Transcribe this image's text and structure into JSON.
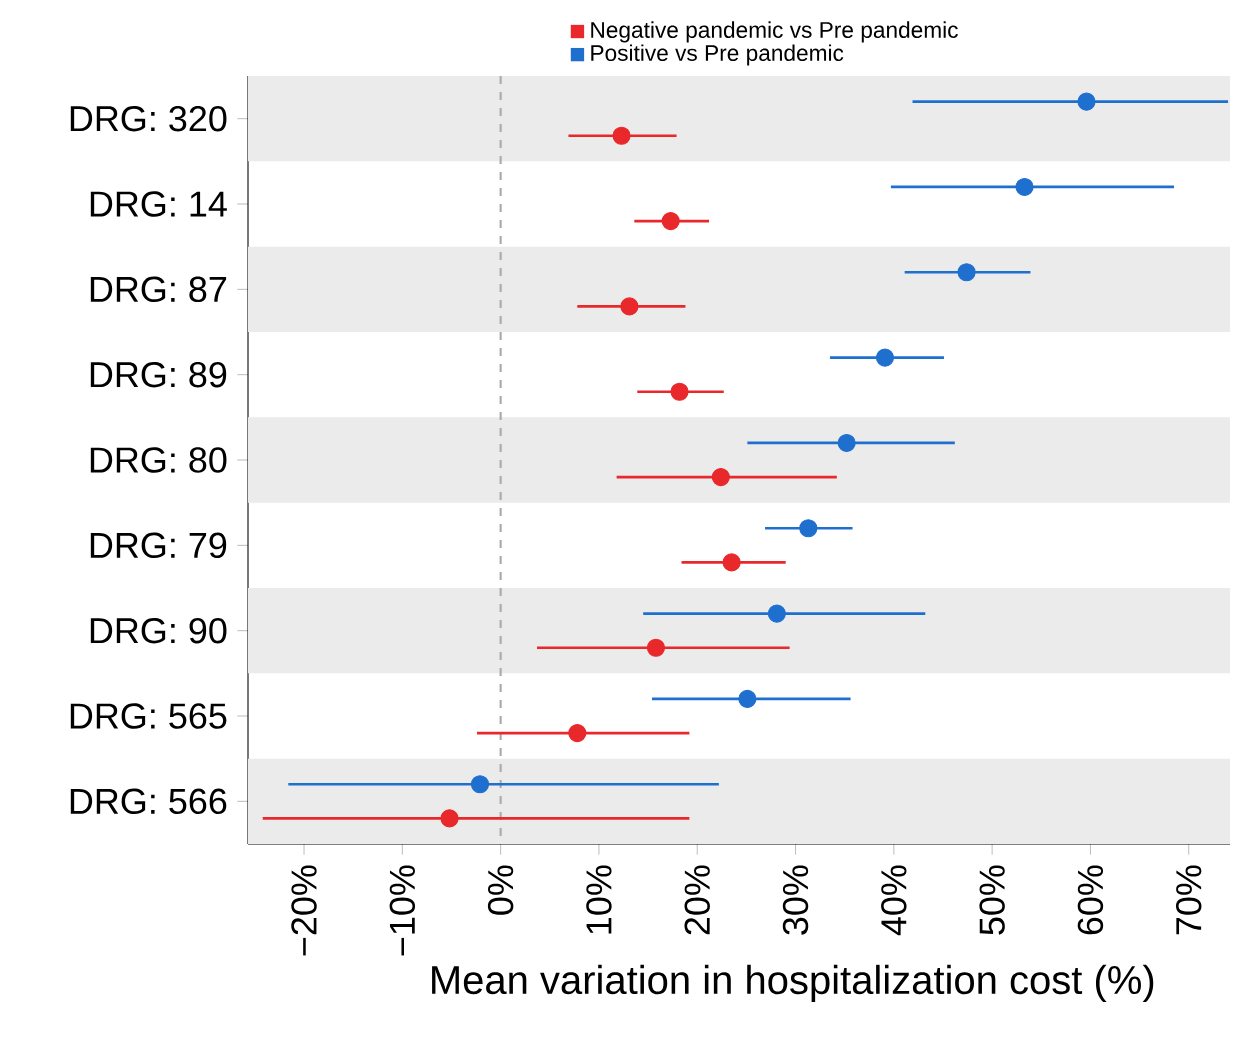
{
  "chart_data": {
    "type": "scatter",
    "orientation": "horizontal",
    "categories": [
      "DRG: 320",
      "DRG: 14",
      "DRG: 87",
      "DRG: 89",
      "DRG: 80",
      "DRG: 79",
      "DRG: 90",
      "DRG: 565",
      "DRG: 566"
    ],
    "series": [
      {
        "name": "Negative pandemic vs Pre pandemic",
        "color": "#e8282b",
        "values": [
          12.3,
          17.3,
          13.1,
          18.2,
          22.4,
          23.5,
          15.8,
          7.8,
          -5.2
        ],
        "errors": [
          [
            6.9,
            17.9
          ],
          [
            13.6,
            21.2
          ],
          [
            7.8,
            18.8
          ],
          [
            13.9,
            22.7
          ],
          [
            11.8,
            34.2
          ],
          [
            18.4,
            29.0
          ],
          [
            3.7,
            29.4
          ],
          [
            -2.4,
            19.2
          ],
          [
            -24.2,
            19.2
          ]
        ]
      },
      {
        "name": "Positive vs Pre pandemic",
        "color": "#1f6fcf",
        "values": [
          59.6,
          53.3,
          47.4,
          39.1,
          35.2,
          31.3,
          28.1,
          25.1,
          -2.1
        ],
        "errors": [
          [
            41.9,
            74.0
          ],
          [
            39.7,
            68.5
          ],
          [
            41.1,
            53.9
          ],
          [
            33.5,
            45.1
          ],
          [
            25.1,
            46.2
          ],
          [
            26.9,
            35.8
          ],
          [
            14.5,
            43.2
          ],
          [
            15.4,
            35.6
          ],
          [
            -21.6,
            22.2
          ]
        ]
      }
    ],
    "xlabel": "Mean variation in hospitalization cost (%)",
    "xlim": [
      -25.7,
      74.2
    ],
    "xticks": [
      {
        "value": -20,
        "label": "−20%"
      },
      {
        "value": -10,
        "label": "−10%"
      },
      {
        "value": 0,
        "label": "0%"
      },
      {
        "value": 10,
        "label": "10%"
      },
      {
        "value": 20,
        "label": "20%"
      },
      {
        "value": 30,
        "label": "30%"
      },
      {
        "value": 40,
        "label": "40%"
      },
      {
        "value": 50,
        "label": "50%"
      },
      {
        "value": 60,
        "label": "60%"
      },
      {
        "value": 70,
        "label": "70%"
      }
    ],
    "ref_lines": [
      {
        "axis": "x",
        "value": 0,
        "color": "#aaaaaa",
        "line_style": "dashed"
      }
    ],
    "bands": [
      {
        "axis": "y",
        "from": "DRG: 320",
        "to": "DRG: 320",
        "color": "#ebebeb"
      },
      {
        "axis": "y",
        "from": "DRG: 87",
        "to": "DRG: 87",
        "color": "#ebebeb"
      },
      {
        "axis": "y",
        "from": "DRG: 80",
        "to": "DRG: 80",
        "color": "#ebebeb"
      },
      {
        "axis": "y",
        "from": "DRG: 90",
        "to": "DRG: 90",
        "color": "#ebebeb"
      },
      {
        "axis": "y",
        "from": "DRG: 566",
        "to": "DRG: 566",
        "color": "#ebebeb"
      }
    ],
    "legend": "top",
    "grid": false
  }
}
